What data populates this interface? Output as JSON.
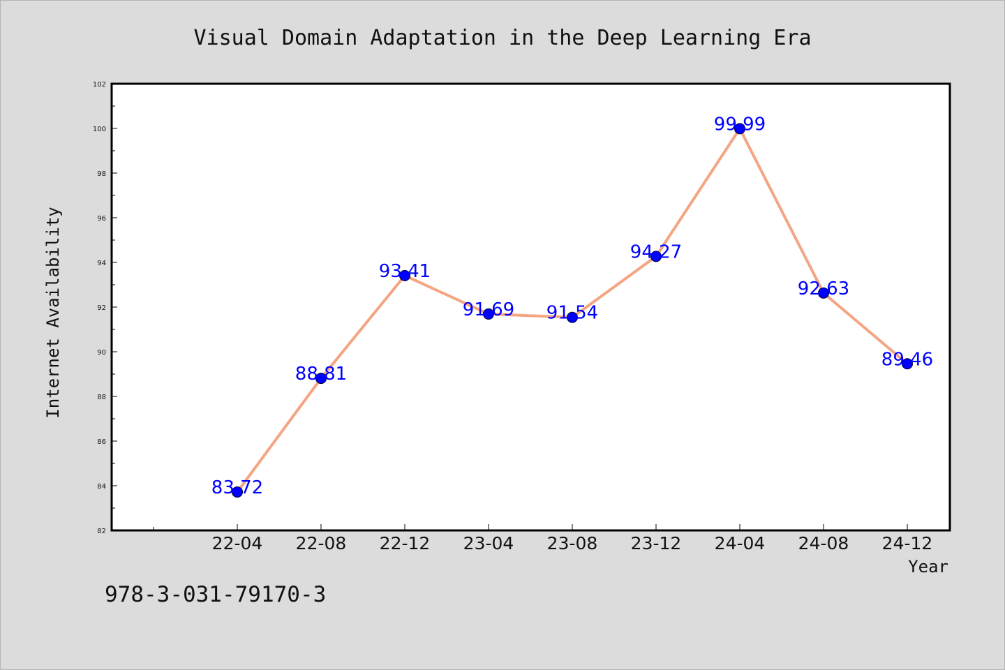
{
  "footer": {
    "isbn": "978-3-031-79170-3"
  },
  "colors": {
    "background": "#dcdcdc",
    "plot_background": "#ffffff",
    "line": "#f4a582",
    "marker": "#0000ff",
    "data_label": "#0000ff"
  },
  "chart_data": {
    "type": "line",
    "title": "Visual Domain Adaptation in the Deep Learning Era",
    "xlabel": "Year",
    "ylabel": "Internet Availability",
    "categories": [
      "22-04",
      "22-08",
      "22-12",
      "23-04",
      "23-08",
      "23-12",
      "24-04",
      "24-08",
      "24-12"
    ],
    "series": [
      {
        "values": [
          83.72,
          88.81,
          93.41,
          91.69,
          91.54,
          94.27,
          99.99,
          92.63,
          89.46
        ],
        "labels": [
          "83.72",
          "88.81",
          "93.41",
          "91.69",
          "91.54",
          "94.27",
          "99.99",
          "92.63",
          "89.46"
        ]
      }
    ],
    "ylim": [
      82,
      102
    ],
    "yticks": [
      "82",
      "84",
      "86",
      "88",
      "90",
      "92",
      "94",
      "96",
      "98",
      "100",
      "102"
    ],
    "grid": false,
    "legend": "none"
  }
}
